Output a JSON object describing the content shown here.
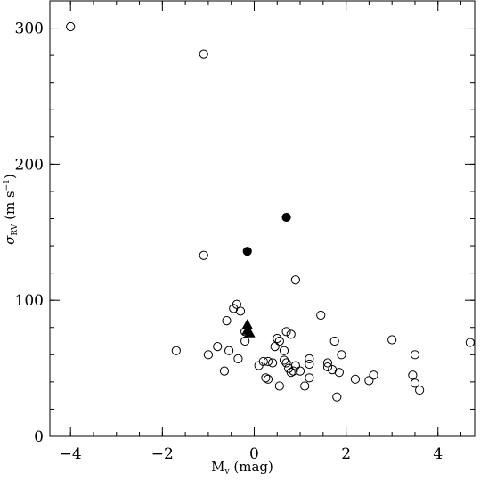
{
  "chart_data": {
    "type": "scatter",
    "title": "",
    "xlabel": {
      "base": "M",
      "sub": "v",
      "rest": " (mag)"
    },
    "ylabel": {
      "sym": "σ",
      "sub": "RV",
      "rest": " (m s",
      "sup": "−1",
      "close": ")"
    },
    "xlim": [
      -4.45,
      4.8
    ],
    "ylim": [
      0,
      320
    ],
    "x_ticks_major": [
      -4,
      -2,
      0,
      2,
      4
    ],
    "x_ticks_minor_step": 0.5,
    "y_ticks_major": [
      0,
      100,
      200,
      300
    ],
    "y_ticks_minor_step": 20,
    "series": [
      {
        "marker": "open-circle",
        "points": [
          [
            -4.0,
            301
          ],
          [
            -1.1,
            281
          ],
          [
            -1.1,
            133
          ],
          [
            0.9,
            115
          ],
          [
            -1.7,
            63
          ],
          [
            -1.0,
            60
          ],
          [
            -0.8,
            66
          ],
          [
            -0.65,
            48
          ],
          [
            -0.55,
            63
          ],
          [
            -0.6,
            85
          ],
          [
            -0.45,
            94
          ],
          [
            -0.38,
            97
          ],
          [
            -0.3,
            92
          ],
          [
            -0.35,
            57
          ],
          [
            -0.2,
            70
          ],
          [
            -0.2,
            77
          ],
          [
            0.1,
            52
          ],
          [
            0.2,
            55
          ],
          [
            0.25,
            43
          ],
          [
            0.3,
            42
          ],
          [
            0.3,
            55
          ],
          [
            0.4,
            54
          ],
          [
            0.45,
            66
          ],
          [
            0.5,
            72
          ],
          [
            0.55,
            70
          ],
          [
            0.55,
            37
          ],
          [
            0.65,
            63
          ],
          [
            0.65,
            56
          ],
          [
            0.7,
            77
          ],
          [
            0.7,
            54
          ],
          [
            0.75,
            50
          ],
          [
            0.8,
            47
          ],
          [
            0.8,
            75
          ],
          [
            0.85,
            48
          ],
          [
            0.9,
            52
          ],
          [
            1.0,
            48
          ],
          [
            1.1,
            37
          ],
          [
            1.2,
            43
          ],
          [
            1.2,
            53
          ],
          [
            1.2,
            57
          ],
          [
            1.45,
            89
          ],
          [
            1.6,
            54
          ],
          [
            1.6,
            51
          ],
          [
            1.7,
            49
          ],
          [
            1.75,
            70
          ],
          [
            1.8,
            29
          ],
          [
            1.85,
            47
          ],
          [
            1.9,
            60
          ],
          [
            2.2,
            42
          ],
          [
            2.5,
            41
          ],
          [
            2.6,
            45
          ],
          [
            3.0,
            71
          ],
          [
            3.45,
            45
          ],
          [
            3.5,
            39
          ],
          [
            3.5,
            60
          ],
          [
            3.6,
            34
          ],
          [
            4.7,
            69
          ]
        ]
      },
      {
        "marker": "filled-circle",
        "points": [
          [
            0.7,
            161
          ],
          [
            -0.15,
            136
          ]
        ]
      },
      {
        "marker": "filled-triangle",
        "points": [
          [
            -0.15,
            82
          ],
          [
            -0.15,
            78
          ],
          [
            -0.1,
            76
          ]
        ]
      }
    ]
  }
}
